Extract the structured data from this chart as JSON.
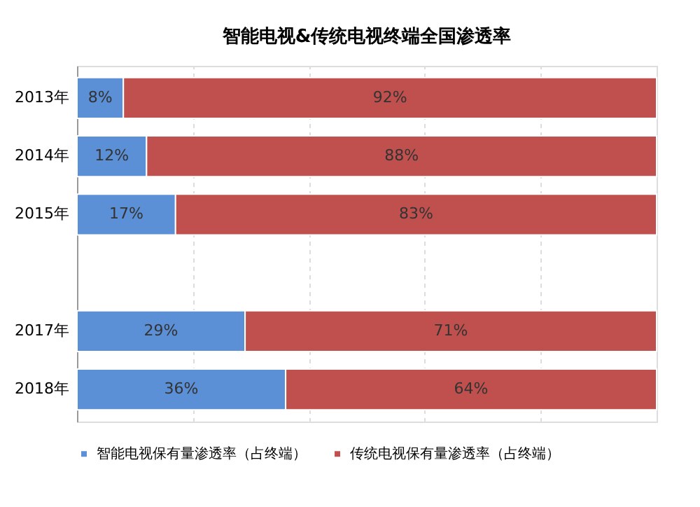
{
  "chart_data": {
    "type": "bar",
    "orientation": "horizontal",
    "stacked": true,
    "title": "智能电视&传统电视终端全国渗透率",
    "categories": [
      "2013年",
      "2014年",
      "2015年",
      null,
      "2017年",
      "2018年"
    ],
    "series": [
      {
        "name": "智能电视保有量渗透率（占终端）",
        "color": "#5b8fd6",
        "values": [
          8,
          12,
          17,
          null,
          29,
          36
        ],
        "value_labels": [
          "8%",
          "12%",
          "17%",
          null,
          "29%",
          "36%"
        ]
      },
      {
        "name": "传统电视保有量渗透率（占终端）",
        "color": "#c0504d",
        "values": [
          92,
          88,
          83,
          null,
          71,
          64
        ],
        "value_labels": [
          "92%",
          "88%",
          "83%",
          null,
          "71%",
          "64%"
        ]
      }
    ],
    "tick_labels": "y",
    "grid": "x",
    "legend": "bottom"
  }
}
